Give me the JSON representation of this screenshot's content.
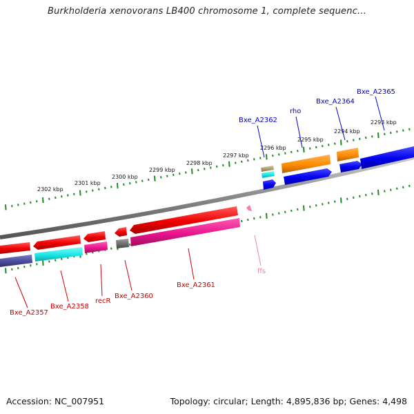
{
  "map": {
    "title": "Burkholderia xenovorans LB400 chromosome 1, complete sequenc...",
    "accession": "Accession: NC_007951",
    "summary": "Topology: circular; Length: 4,895,836 bp; Genes: 4,498"
  },
  "ticks": [
    "2302 kbp",
    "2301 kbp",
    "2300 kbp",
    "2299 kbp",
    "2298 kbp",
    "2297 kbp",
    "2296 kbp",
    "2295 kbp",
    "2294 kbp",
    "2293 kbp"
  ],
  "gene_labels": [
    {
      "text": "Bxe_A2357",
      "color": "#cc0000"
    },
    {
      "text": "Bxe_A2358",
      "color": "#cc0000"
    },
    {
      "text": "recR",
      "color": "#cc0000"
    },
    {
      "text": "Bxe_A2360",
      "color": "#cc0000"
    },
    {
      "text": "Bxe_A2361",
      "color": "#cc0000"
    },
    {
      "text": "ffs",
      "color": "#f080b0"
    },
    {
      "text": "Bxe_A2362",
      "color": "#0000cc"
    },
    {
      "text": "rho",
      "color": "#0000cc"
    },
    {
      "text": "Bxe_A2364",
      "color": "#0000cc"
    },
    {
      "text": "Bxe_A2365",
      "color": "#0000cc"
    }
  ],
  "colors": {
    "backbone": "#888888",
    "tick": "#1f8a1f",
    "reverse_gene": "#ee0000",
    "forward_gene": "#0000ee",
    "cds_magenta": "#e8158c",
    "cds_cyan": "#19e6e6",
    "cds_slate": "#4b4b9b",
    "cds_orange": "#ff8c00",
    "cds_gray": "#6e6e6e",
    "rna_pink": "#f080b0"
  }
}
